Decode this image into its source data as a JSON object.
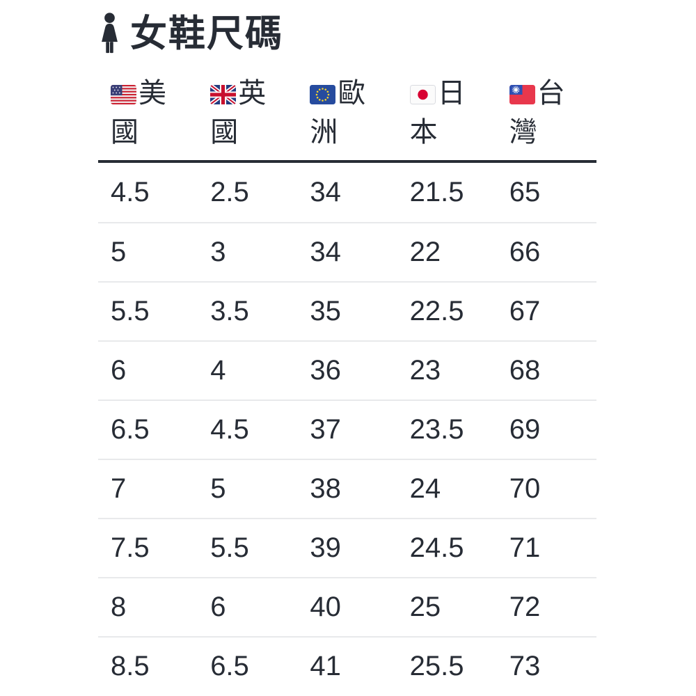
{
  "page": {
    "title": "女鞋尺碼",
    "title_icon": "woman-icon",
    "background": "#ffffff"
  },
  "size_table": {
    "columns": [
      {
        "country": "美國",
        "line1": "美",
        "line2": "國",
        "flag_icon": "us-flag-icon"
      },
      {
        "country": "英國",
        "line1": "英",
        "line2": "國",
        "flag_icon": "uk-flag-icon"
      },
      {
        "country": "歐洲",
        "line1": "歐",
        "line2": "洲",
        "flag_icon": "eu-flag-icon"
      },
      {
        "country": "日本",
        "line1": "日",
        "line2": "本",
        "flag_icon": "jp-flag-icon"
      },
      {
        "country": "台灣",
        "line1": "台",
        "line2": "灣",
        "flag_icon": "tw-flag-icon"
      }
    ],
    "rows": [
      [
        "4.5",
        "2.5",
        "34",
        "21.5",
        "65"
      ],
      [
        "5",
        "3",
        "34",
        "22",
        "66"
      ],
      [
        "5.5",
        "3.5",
        "35",
        "22.5",
        "67"
      ],
      [
        "6",
        "4",
        "36",
        "23",
        "68"
      ],
      [
        "6.5",
        "4.5",
        "37",
        "23.5",
        "69"
      ],
      [
        "7",
        "5",
        "38",
        "24",
        "70"
      ],
      [
        "7.5",
        "5.5",
        "39",
        "24.5",
        "71"
      ],
      [
        "8",
        "6",
        "40",
        "25",
        "72"
      ],
      [
        "8.5",
        "6.5",
        "41",
        "25.5",
        "73"
      ]
    ]
  },
  "colors": {
    "text": "#272c35",
    "header_rule": "#272c35",
    "row_separator": "#e8e9eb",
    "background": "#ffffff"
  }
}
